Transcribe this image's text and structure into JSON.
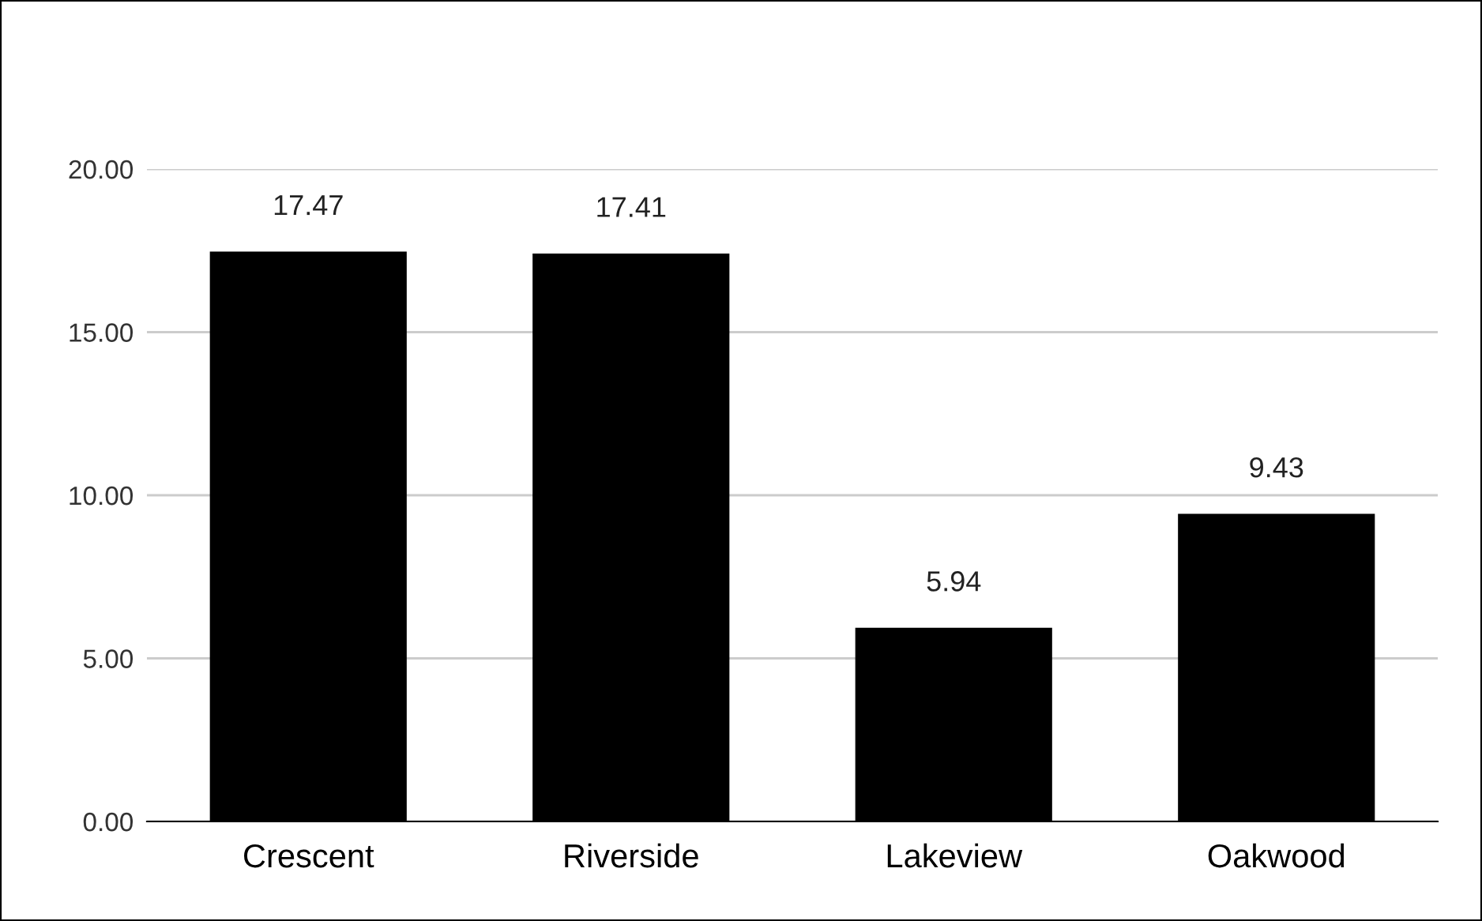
{
  "chart_data": {
    "type": "bar",
    "categories": [
      "Crescent",
      "Riverside",
      "Lakeview",
      "Oakwood"
    ],
    "values": [
      17.47,
      17.41,
      5.94,
      9.43
    ],
    "color": "#000000",
    "ylim": [
      0,
      20
    ],
    "yticks": [
      {
        "value": 0,
        "label": "0.00"
      },
      {
        "value": 5,
        "label": "5.00"
      },
      {
        "value": 10,
        "label": "10.00"
      },
      {
        "value": 15,
        "label": "15.00"
      },
      {
        "value": 20,
        "label": "20.00"
      }
    ],
    "grid": "y",
    "data_labels": true
  }
}
